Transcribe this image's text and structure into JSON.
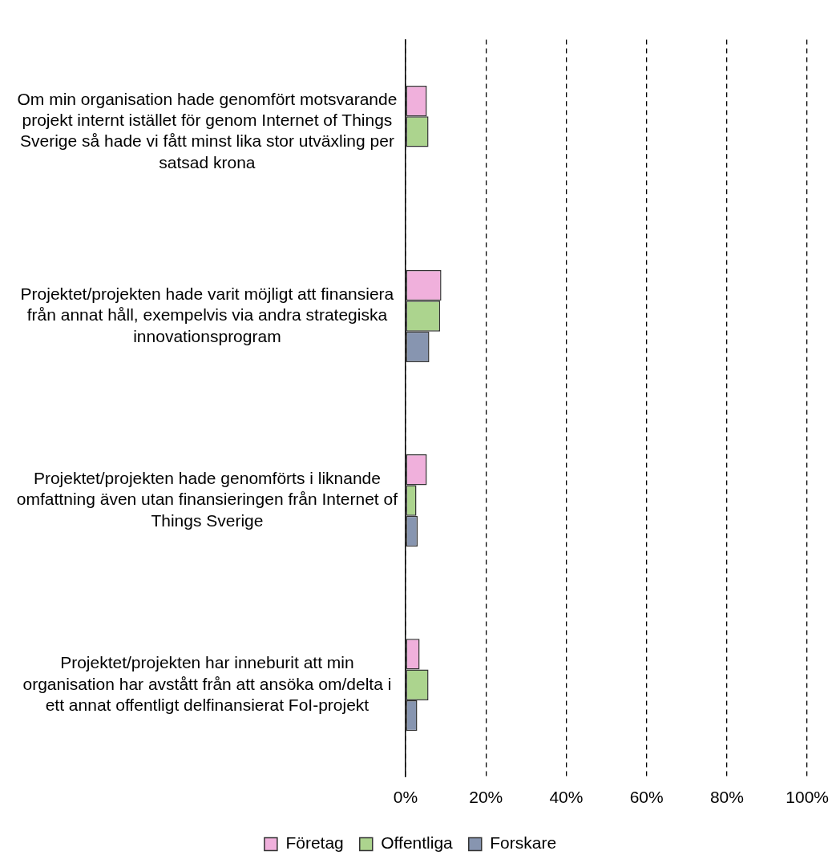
{
  "chart_data": {
    "type": "bar",
    "orientation": "horizontal",
    "categories": [
      "Om min organisation hade genomfört motsvarande projekt internt istället för genom Internet of Things Sverige så hade vi fått minst lika stor utväxling per satsad krona",
      "Projektet/projekten hade varit möjligt att finansiera från annat håll, exempelvis via andra strategiska innovationsprogram",
      "Projektet/projekten hade genomförts i liknande omfattning även utan finansieringen från Internet of Things Sverige",
      "Projektet/projekten har inneburit att min organisation har avstått från att ansöka om/delta i ett annat offentligt delfinansierat FoI-projekt"
    ],
    "series": [
      {
        "name": "Företag",
        "color": "#f0b0dc",
        "values": [
          5.3,
          8.9,
          5.3,
          3.5
        ]
      },
      {
        "name": "Offentliga",
        "color": "#acd48e",
        "values": [
          5.7,
          8.6,
          2.7,
          5.7
        ]
      },
      {
        "name": "Forskare",
        "color": "#8795b0",
        "values": [
          null,
          5.9,
          3.0,
          2.9
        ]
      }
    ],
    "xlim": [
      0,
      100
    ],
    "xticks": [
      {
        "value": 0,
        "label": "0%"
      },
      {
        "value": 20,
        "label": "20%"
      },
      {
        "value": 40,
        "label": "40%"
      },
      {
        "value": 60,
        "label": "60%"
      },
      {
        "value": 80,
        "label": "80%"
      },
      {
        "value": 100,
        "label": "100%"
      }
    ],
    "grid": "x",
    "legend": "bottom"
  }
}
